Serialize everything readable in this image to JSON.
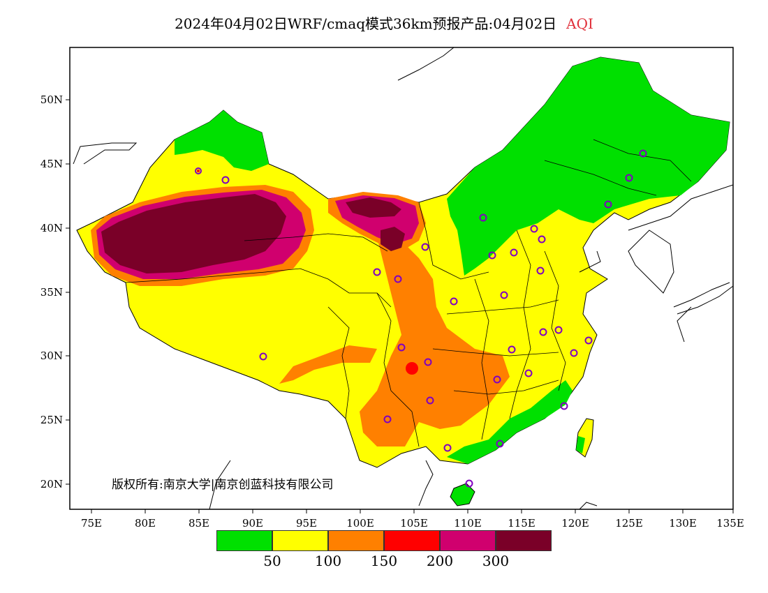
{
  "title": {
    "main": "2024年04月02日WRF/cmaq模式36km预报产品:04月02日",
    "variable": "AQI",
    "variable_color": "#e0303a"
  },
  "axes": {
    "lat_labels": [
      "50N",
      "45N",
      "40N",
      "35N",
      "30N",
      "25N",
      "20N"
    ],
    "lon_labels": [
      "75E",
      "80E",
      "85E",
      "90E",
      "95E",
      "100E",
      "105E",
      "110E",
      "115E",
      "120E",
      "125E",
      "130E",
      "135E"
    ]
  },
  "copyright": "版权所有:南京大学|南京创蓝科技有限公司",
  "legend": {
    "colors": [
      "#00e000",
      "#ffff00",
      "#ff8000",
      "#ff0000",
      "#d0006e",
      "#7a0028"
    ],
    "labels": [
      "50",
      "100",
      "150",
      "200",
      "300"
    ]
  },
  "colors": {
    "good": "#00e000",
    "moderate": "#ffff00",
    "unhealthy_sensitive": "#ff8000",
    "unhealthy": "#ff0000",
    "very_unhealthy": "#d0006e",
    "hazardous": "#7a0028",
    "station_marker": "#8000c0"
  }
}
